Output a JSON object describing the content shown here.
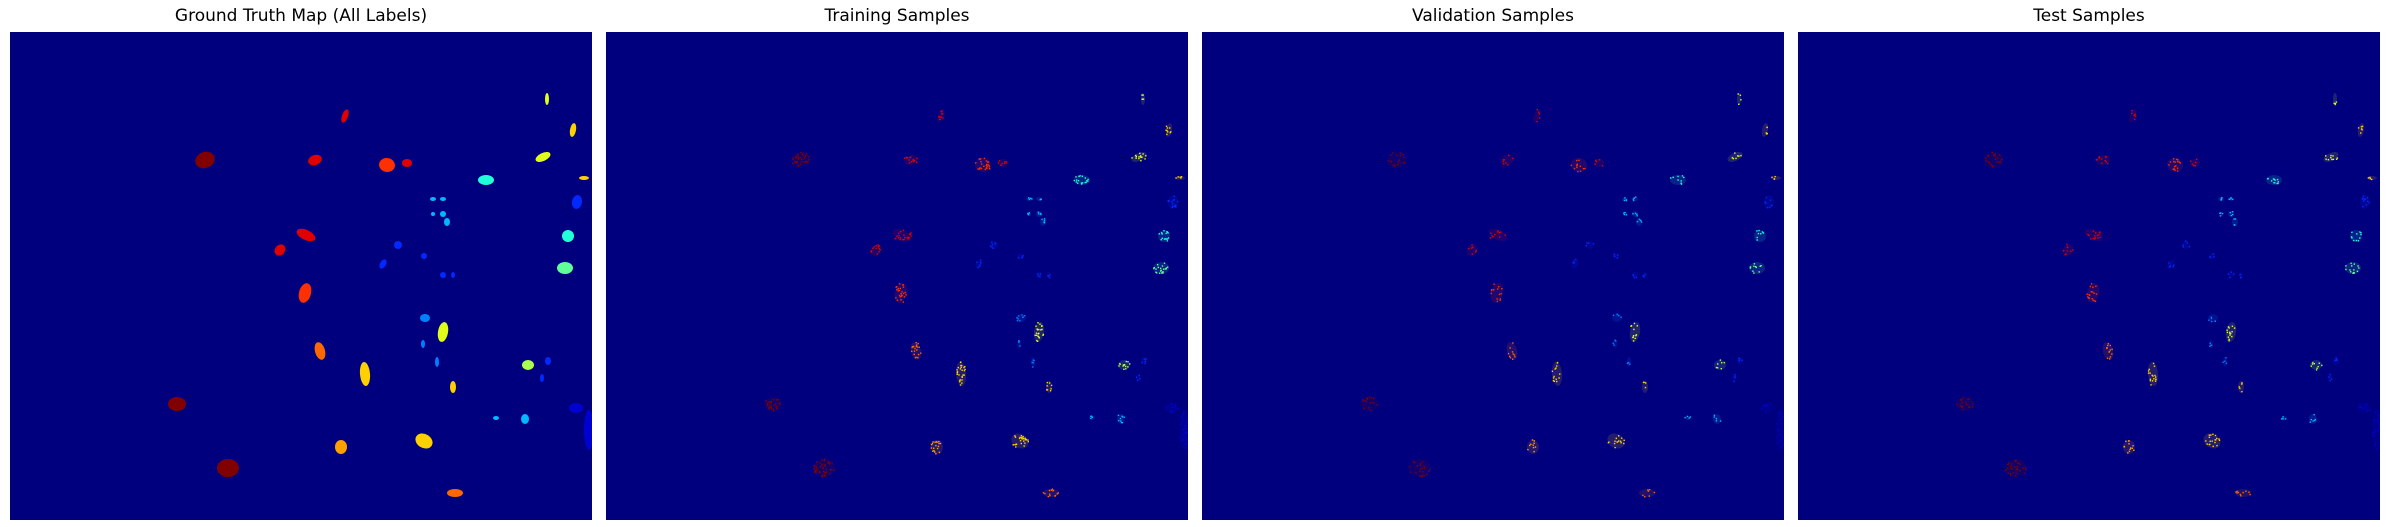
{
  "chart_data": [
    {
      "type": "heatmap",
      "title": "Ground Truth Map (All Labels)",
      "xlabel": "",
      "ylabel": "",
      "colormap": "jet",
      "background_color": "#00007f",
      "axes_visible": false,
      "grid": false,
      "legend": "none",
      "subset": "all"
    },
    {
      "type": "heatmap",
      "title": "Training Samples",
      "xlabel": "",
      "ylabel": "",
      "colormap": "jet",
      "background_color": "#00007f",
      "axes_visible": false,
      "grid": false,
      "legend": "none",
      "subset": "train"
    },
    {
      "type": "heatmap",
      "title": "Validation Samples",
      "xlabel": "",
      "ylabel": "",
      "colormap": "jet",
      "background_color": "#00007f",
      "axes_visible": false,
      "grid": false,
      "legend": "none",
      "subset": "validation"
    },
    {
      "type": "heatmap",
      "title": "Test Samples",
      "xlabel": "",
      "ylabel": "",
      "colormap": "jet",
      "background_color": "#00007f",
      "axes_visible": false,
      "grid": false,
      "legend": "none",
      "subset": "test"
    }
  ],
  "colors": {
    "background": "#00007f",
    "class_colors": [
      "#0000d0",
      "#0028ff",
      "#0080ff",
      "#00b8ff",
      "#20ffd8",
      "#60ff98",
      "#a8ff50",
      "#e0ff18",
      "#ffd000",
      "#ffa000",
      "#ff6800",
      "#ff3000",
      "#e00000",
      "#800000"
    ]
  }
}
